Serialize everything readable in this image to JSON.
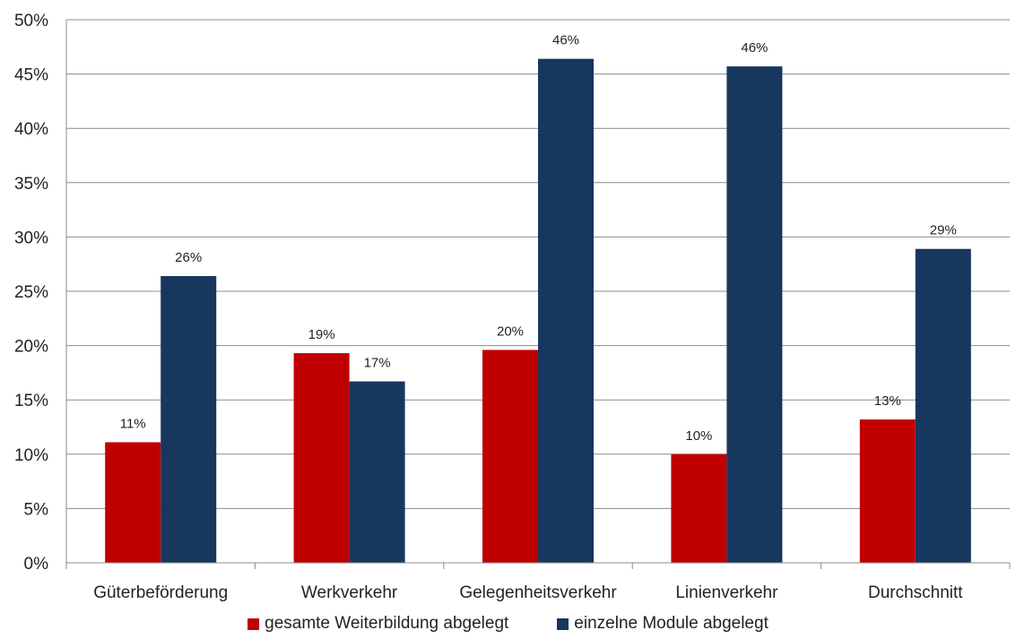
{
  "chart_data": {
    "type": "bar",
    "categories": [
      "Güterbeförderung",
      "Werkverkehr",
      "Gelegenheitsverkehr",
      "Linienverkehr",
      "Durchschnitt"
    ],
    "series": [
      {
        "name": "gesamte Weiterbildung abgelegt",
        "color": "#c00000",
        "values": [
          11.1,
          19.3,
          19.6,
          10.0,
          13.2
        ],
        "labels": [
          "11%",
          "19%",
          "20%",
          "10%",
          "13%"
        ]
      },
      {
        "name": "einzelne Module abgelegt",
        "color": "#17375e",
        "values": [
          26.4,
          16.7,
          46.4,
          45.7,
          28.9
        ],
        "labels": [
          "26%",
          "17%",
          "46%",
          "46%",
          "29%"
        ]
      }
    ],
    "y_ticks": [
      "0%",
      "5%",
      "10%",
      "15%",
      "20%",
      "25%",
      "30%",
      "35%",
      "40%",
      "45%",
      "50%"
    ],
    "ylim": [
      0,
      50
    ],
    "y_unit": "%",
    "grid": true,
    "legend_position": "bottom"
  }
}
